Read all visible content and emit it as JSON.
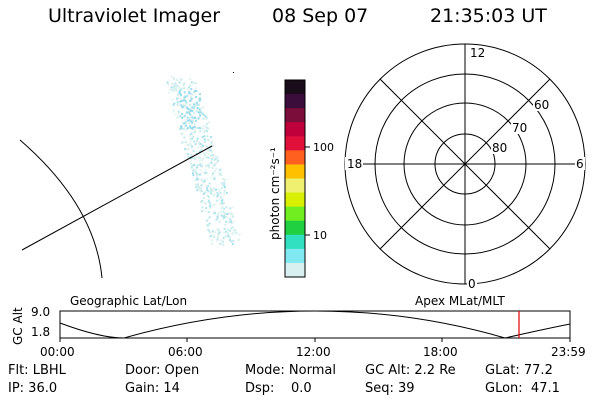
{
  "header": {
    "instrument": "Ultraviolet Imager",
    "date": "08 Sep 07",
    "time": "21:35:03 UT"
  },
  "colorbar": {
    "unit_label": "photon cm⁻²s⁻¹",
    "tick_labels": [
      "100",
      "10"
    ],
    "colors": [
      "#1a0d1a",
      "#3a0d3a",
      "#7a0d3a",
      "#c0003a",
      "#e0103a",
      "#ff6020",
      "#ffc000",
      "#f0f070",
      "#d8f000",
      "#70ee20",
      "#20d040",
      "#30e0c0",
      "#80e8f0",
      "#d8f0f0"
    ]
  },
  "polar": {
    "mlt_labels": {
      "top": "12",
      "left": "18",
      "right": "6",
      "bottom": "0"
    },
    "lat_labels": [
      "60",
      "70",
      "80"
    ]
  },
  "timeline": {
    "left_label": "Geographic Lat/Lon",
    "right_label": "Apex MLat/MLT",
    "axis_title": "GC Alt",
    "y_ticks": [
      "9.0",
      "1.8"
    ],
    "x_ticks": [
      "00:00",
      "06:00",
      "12:00",
      "18:00",
      "23:59"
    ],
    "current_time_marker_color": "#e00000"
  },
  "info": {
    "flt": "Flt: LBHL",
    "door": "Door: Open",
    "mode": "Mode: Normal",
    "gc_alt": "GC Alt: 2.2 Re",
    "glat": "GLat: 77.2",
    "ip": "IP: 36.0",
    "gain": "Gain: 14",
    "dsp": "Dsp:    0.0",
    "seq": "Seq: 39",
    "glon": "GLon:  47.1"
  }
}
